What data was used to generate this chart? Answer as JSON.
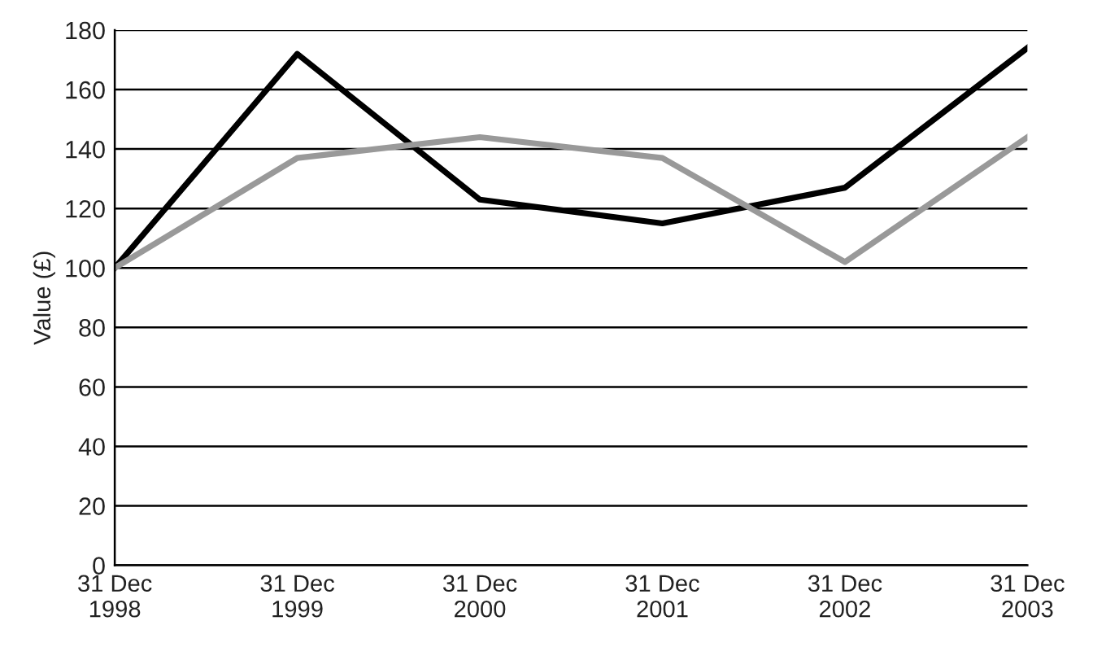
{
  "chart_data": {
    "type": "line",
    "ylabel": "Value (£)",
    "categories": [
      "31 Dec\n1998",
      "31 Dec\n1999",
      "31 Dec\n2000",
      "31 Dec\n2001",
      "31 Dec\n2002",
      "31 Dec\n2003"
    ],
    "series": [
      {
        "color": "#000000",
        "values": [
          100,
          172,
          123,
          115,
          127,
          174
        ]
      },
      {
        "color": "#999999",
        "values": [
          100,
          137,
          144,
          137,
          102,
          144
        ]
      }
    ],
    "ylim": [
      0,
      180
    ],
    "yticks": [
      0,
      20,
      40,
      60,
      80,
      100,
      120,
      140,
      160,
      180
    ],
    "grid": "y",
    "marker": "none",
    "line_style": "solid"
  }
}
